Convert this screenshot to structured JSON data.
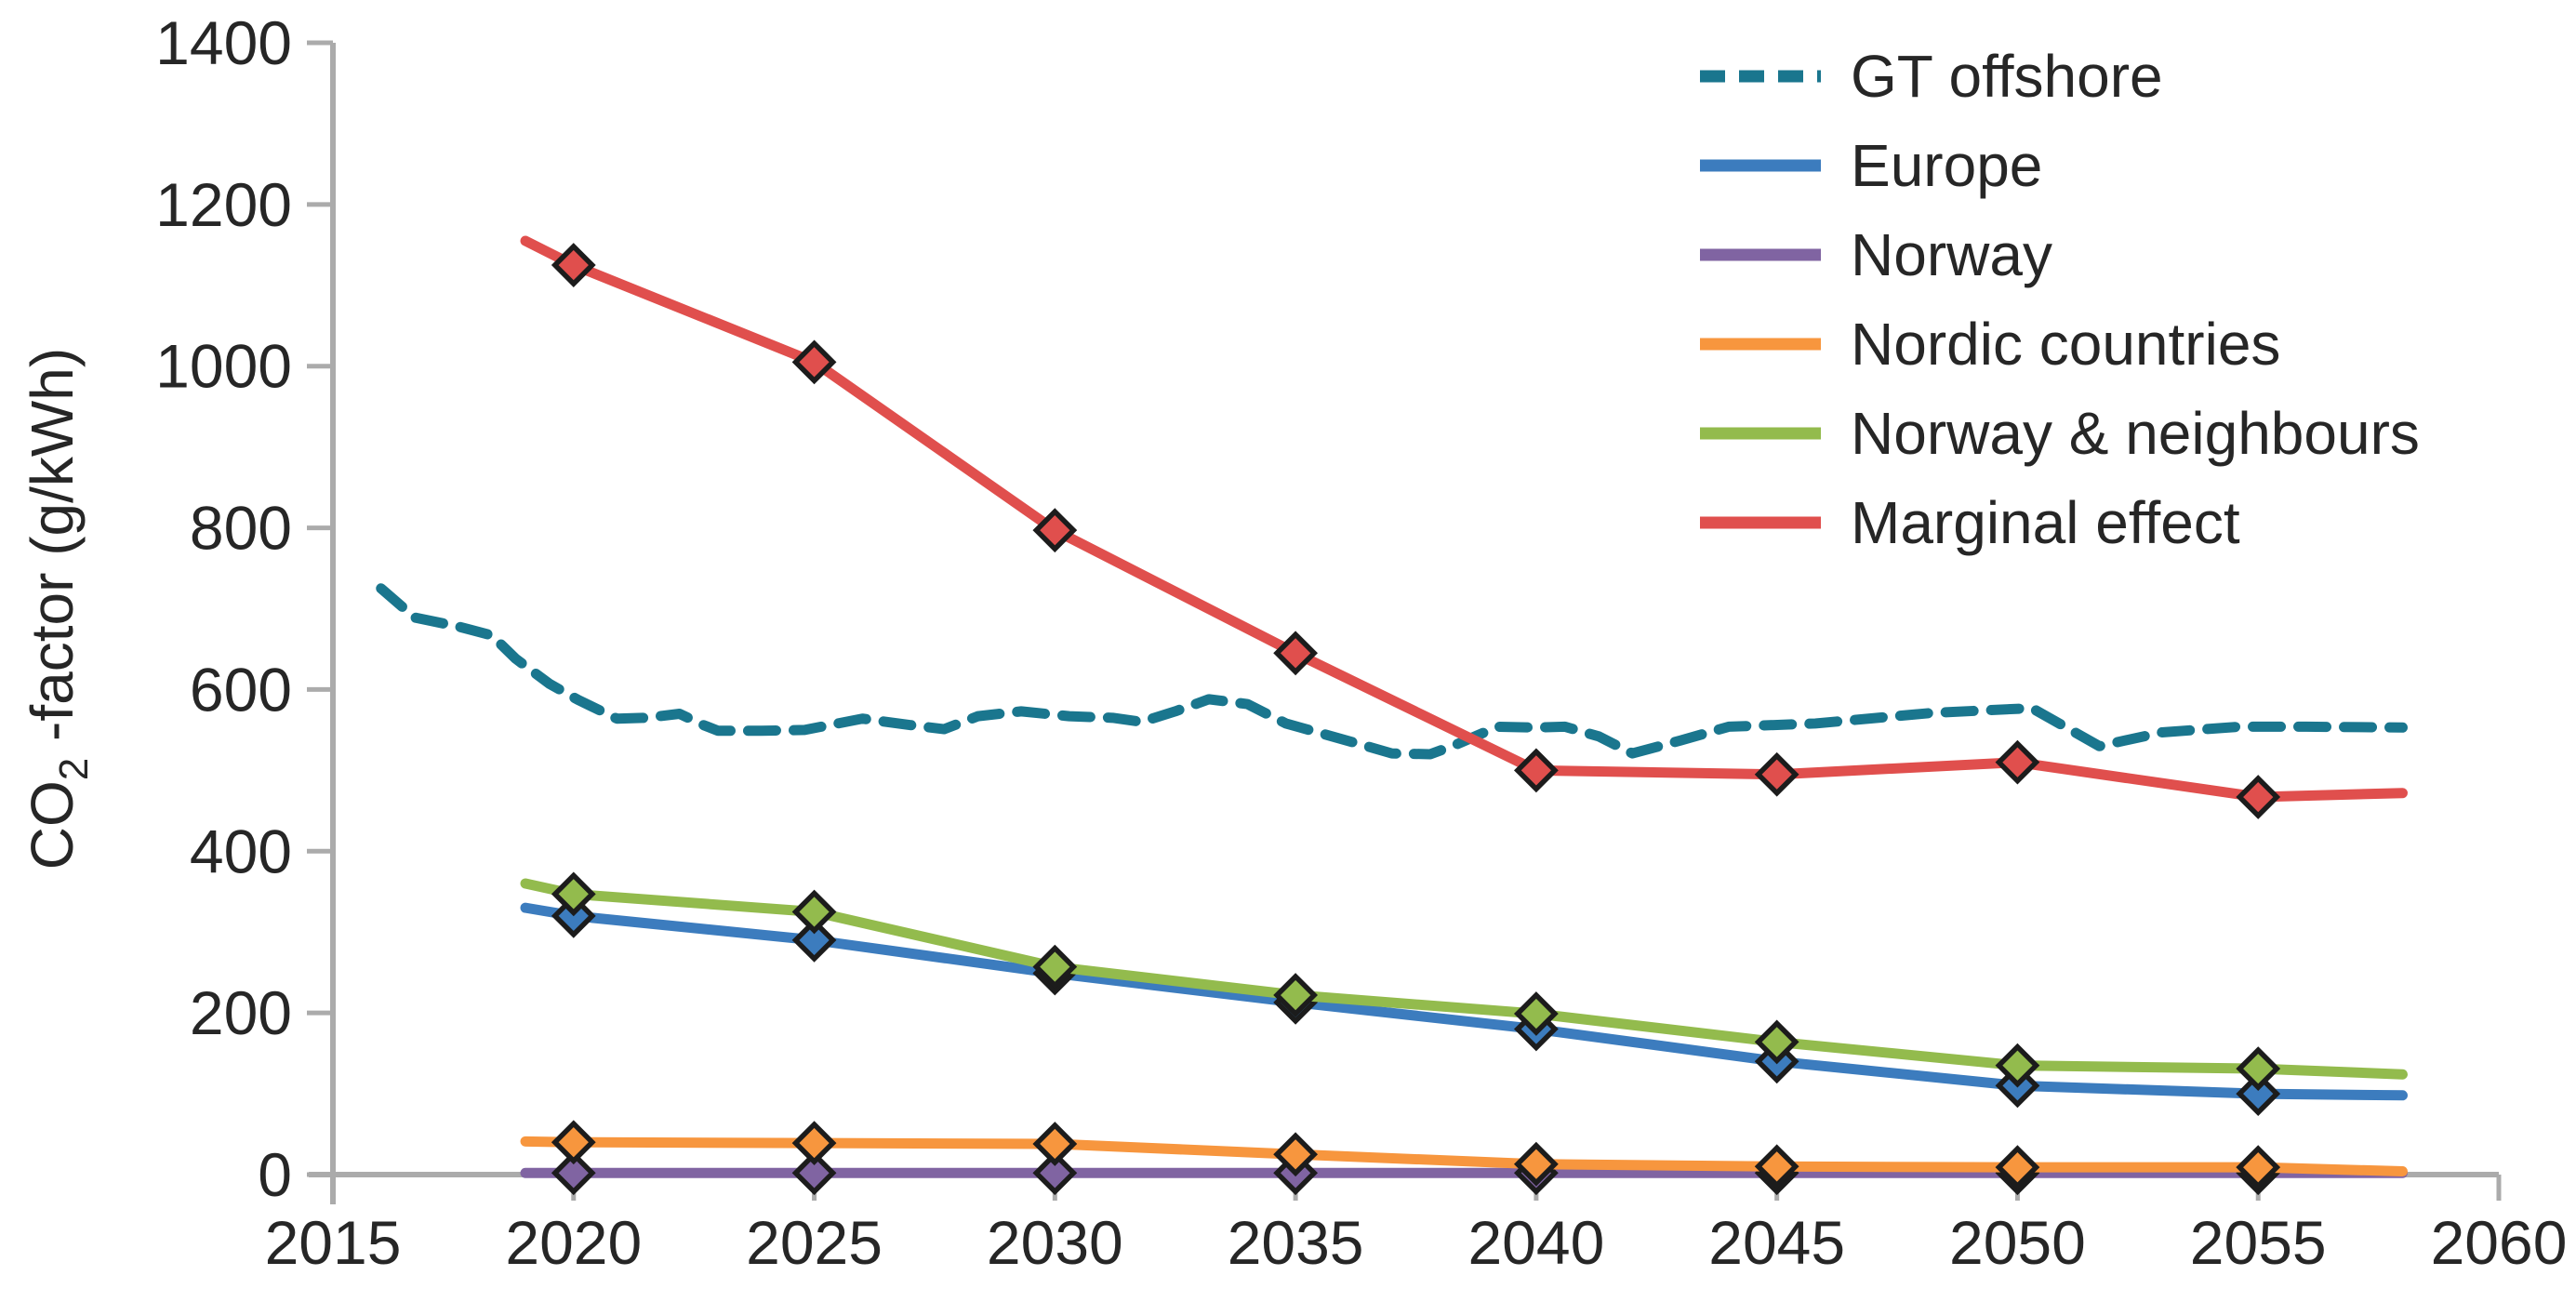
{
  "figure": {
    "background": "#ffffff",
    "text_color": "#262626",
    "axis_color": "#ababab"
  },
  "chart_data": {
    "type": "line",
    "title": "",
    "xlabel": "",
    "ylabel": "CO2 -factor (g/kWh)",
    "ylabel_parts": {
      "pre": "CO",
      "sub": "2",
      "post": " -factor (g/kWh)"
    },
    "xlim": [
      2015,
      2060
    ],
    "ylim": [
      0,
      1400
    ],
    "x_ticks": [
      2015,
      2020,
      2025,
      2030,
      2035,
      2040,
      2045,
      2050,
      2055,
      2060
    ],
    "y_ticks": [
      0,
      200,
      400,
      600,
      800,
      1000,
      1200,
      1400
    ],
    "grid": false,
    "legend_position": "top-right",
    "marker_shape": "diamond",
    "series": [
      {
        "name": "GT offshore",
        "color": "#1a768e",
        "dashed": true,
        "markers": "none",
        "marker_years": [],
        "points": [
          [
            2016.0,
            725
          ],
          [
            2016.7,
            689
          ],
          [
            2017.6,
            678
          ],
          [
            2018.3,
            667
          ],
          [
            2018.8,
            638
          ],
          [
            2019.5,
            607
          ],
          [
            2020.1,
            587
          ],
          [
            2020.9,
            564
          ],
          [
            2021.5,
            565
          ],
          [
            2022.2,
            570
          ],
          [
            2022.7,
            556
          ],
          [
            2023.0,
            549
          ],
          [
            2023.9,
            549
          ],
          [
            2024.8,
            550
          ],
          [
            2026.0,
            564
          ],
          [
            2027.0,
            556
          ],
          [
            2027.7,
            551
          ],
          [
            2028.4,
            567
          ],
          [
            2029.3,
            573
          ],
          [
            2030.3,
            567
          ],
          [
            2031.2,
            565
          ],
          [
            2031.8,
            560
          ],
          [
            2032.5,
            573
          ],
          [
            2033.2,
            588
          ],
          [
            2034.0,
            582
          ],
          [
            2034.8,
            558
          ],
          [
            2036.3,
            533
          ],
          [
            2037.0,
            521
          ],
          [
            2037.8,
            520
          ],
          [
            2038.3,
            531
          ],
          [
            2039.2,
            554
          ],
          [
            2040.0,
            553
          ],
          [
            2040.6,
            554
          ],
          [
            2041.3,
            542
          ],
          [
            2042.0,
            521
          ],
          [
            2043.0,
            537
          ],
          [
            2044.0,
            554
          ],
          [
            2045.8,
            558
          ],
          [
            2048.2,
            571
          ],
          [
            2050.3,
            577
          ],
          [
            2051.7,
            530
          ],
          [
            2053.0,
            547
          ],
          [
            2054.6,
            554
          ],
          [
            2056.0,
            554
          ],
          [
            2058.0,
            553
          ]
        ]
      },
      {
        "name": "Europe",
        "color": "#3c7cbe",
        "dashed": false,
        "markers": "diamond",
        "marker_years": [
          2020,
          2025,
          2030,
          2035,
          2040,
          2045,
          2050,
          2055
        ],
        "points": [
          [
            2019,
            330
          ],
          [
            2020,
            320
          ],
          [
            2025,
            290
          ],
          [
            2030,
            249
          ],
          [
            2035,
            213
          ],
          [
            2040,
            180
          ],
          [
            2045,
            140
          ],
          [
            2050,
            110
          ],
          [
            2055,
            100
          ],
          [
            2058,
            98
          ]
        ]
      },
      {
        "name": "Norway",
        "color": "#8064a2",
        "dashed": false,
        "markers": "diamond",
        "marker_years": [
          2020,
          2025,
          2030,
          2035,
          2040,
          2045,
          2050,
          2055
        ],
        "points": [
          [
            2019,
            2
          ],
          [
            2020,
            2
          ],
          [
            2025,
            2
          ],
          [
            2030,
            2
          ],
          [
            2035,
            2
          ],
          [
            2040,
            2
          ],
          [
            2045,
            2
          ],
          [
            2050,
            2
          ],
          [
            2055,
            2
          ],
          [
            2058,
            2
          ]
        ]
      },
      {
        "name": "Nordic countries",
        "color": "#f7963e",
        "dashed": false,
        "markers": "diamond",
        "marker_years": [
          2020,
          2025,
          2030,
          2035,
          2040,
          2045,
          2050,
          2055
        ],
        "points": [
          [
            2019,
            41
          ],
          [
            2020,
            40
          ],
          [
            2025,
            39
          ],
          [
            2030,
            38
          ],
          [
            2035,
            25
          ],
          [
            2040,
            13
          ],
          [
            2045,
            10
          ],
          [
            2050,
            9
          ],
          [
            2055,
            9
          ],
          [
            2058,
            4
          ]
        ]
      },
      {
        "name": "Norway & neighbours",
        "color": "#93bb4d",
        "dashed": false,
        "markers": "diamond",
        "marker_years": [
          2020,
          2025,
          2030,
          2035,
          2040,
          2045,
          2050,
          2055
        ],
        "points": [
          [
            2019,
            360
          ],
          [
            2020,
            347
          ],
          [
            2025,
            325
          ],
          [
            2030,
            257
          ],
          [
            2035,
            222
          ],
          [
            2040,
            199
          ],
          [
            2045,
            164
          ],
          [
            2050,
            135
          ],
          [
            2055,
            131
          ],
          [
            2058,
            124
          ]
        ]
      },
      {
        "name": "Marginal effect",
        "color": "#e04f4d",
        "dashed": false,
        "markers": "diamond",
        "marker_years": [
          2020,
          2025,
          2030,
          2035,
          2040,
          2045,
          2050,
          2055
        ],
        "points": [
          [
            2019,
            1155
          ],
          [
            2020,
            1125
          ],
          [
            2025,
            1005
          ],
          [
            2030,
            797
          ],
          [
            2035,
            645
          ],
          [
            2040,
            500
          ],
          [
            2045,
            495
          ],
          [
            2050,
            510
          ],
          [
            2055,
            467
          ],
          [
            2058,
            472
          ]
        ]
      }
    ]
  }
}
